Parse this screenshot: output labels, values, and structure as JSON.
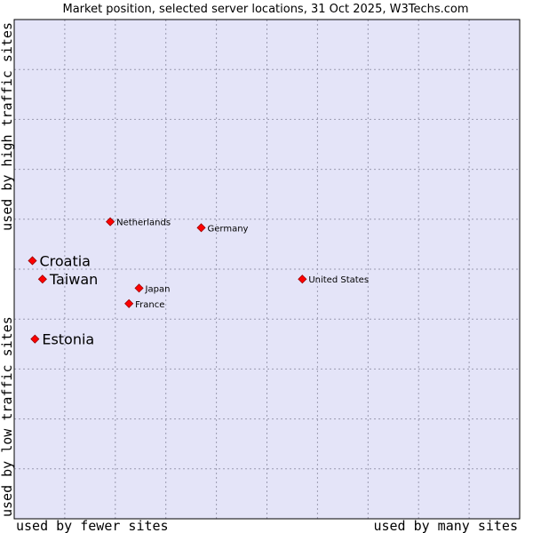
{
  "colors": {
    "plot_background": "#e4e4f8",
    "grid": "#9a9ab0",
    "marker": "#ff0000",
    "marker_edge": "#990000",
    "frame": "#000000"
  },
  "chart_data": {
    "type": "scatter",
    "title": "Market position, selected server locations, 31 Oct 2025, W3Techs.com",
    "xlabel_left": "used by fewer sites",
    "xlabel_right": "used by many sites",
    "ylabel_top": "used by high traffic sites",
    "ylabel_bottom": "used by low traffic sites",
    "xlim": [
      0,
      100
    ],
    "ylim": [
      0,
      100
    ],
    "grid": true,
    "grid_divisions": 10,
    "points": [
      {
        "name": "Netherlands",
        "x": 19.0,
        "y": 59.5,
        "highlight": false
      },
      {
        "name": "Germany",
        "x": 37.0,
        "y": 58.3,
        "highlight": false
      },
      {
        "name": "Croatia",
        "x": 3.6,
        "y": 51.7,
        "highlight": true
      },
      {
        "name": "Taiwan",
        "x": 5.6,
        "y": 48.0,
        "highlight": true
      },
      {
        "name": "United States",
        "x": 57.0,
        "y": 48.0,
        "highlight": false
      },
      {
        "name": "Japan",
        "x": 24.7,
        "y": 46.2,
        "highlight": false
      },
      {
        "name": "France",
        "x": 22.7,
        "y": 43.1,
        "highlight": false
      },
      {
        "name": "Estonia",
        "x": 4.1,
        "y": 36.0,
        "highlight": true
      }
    ]
  }
}
